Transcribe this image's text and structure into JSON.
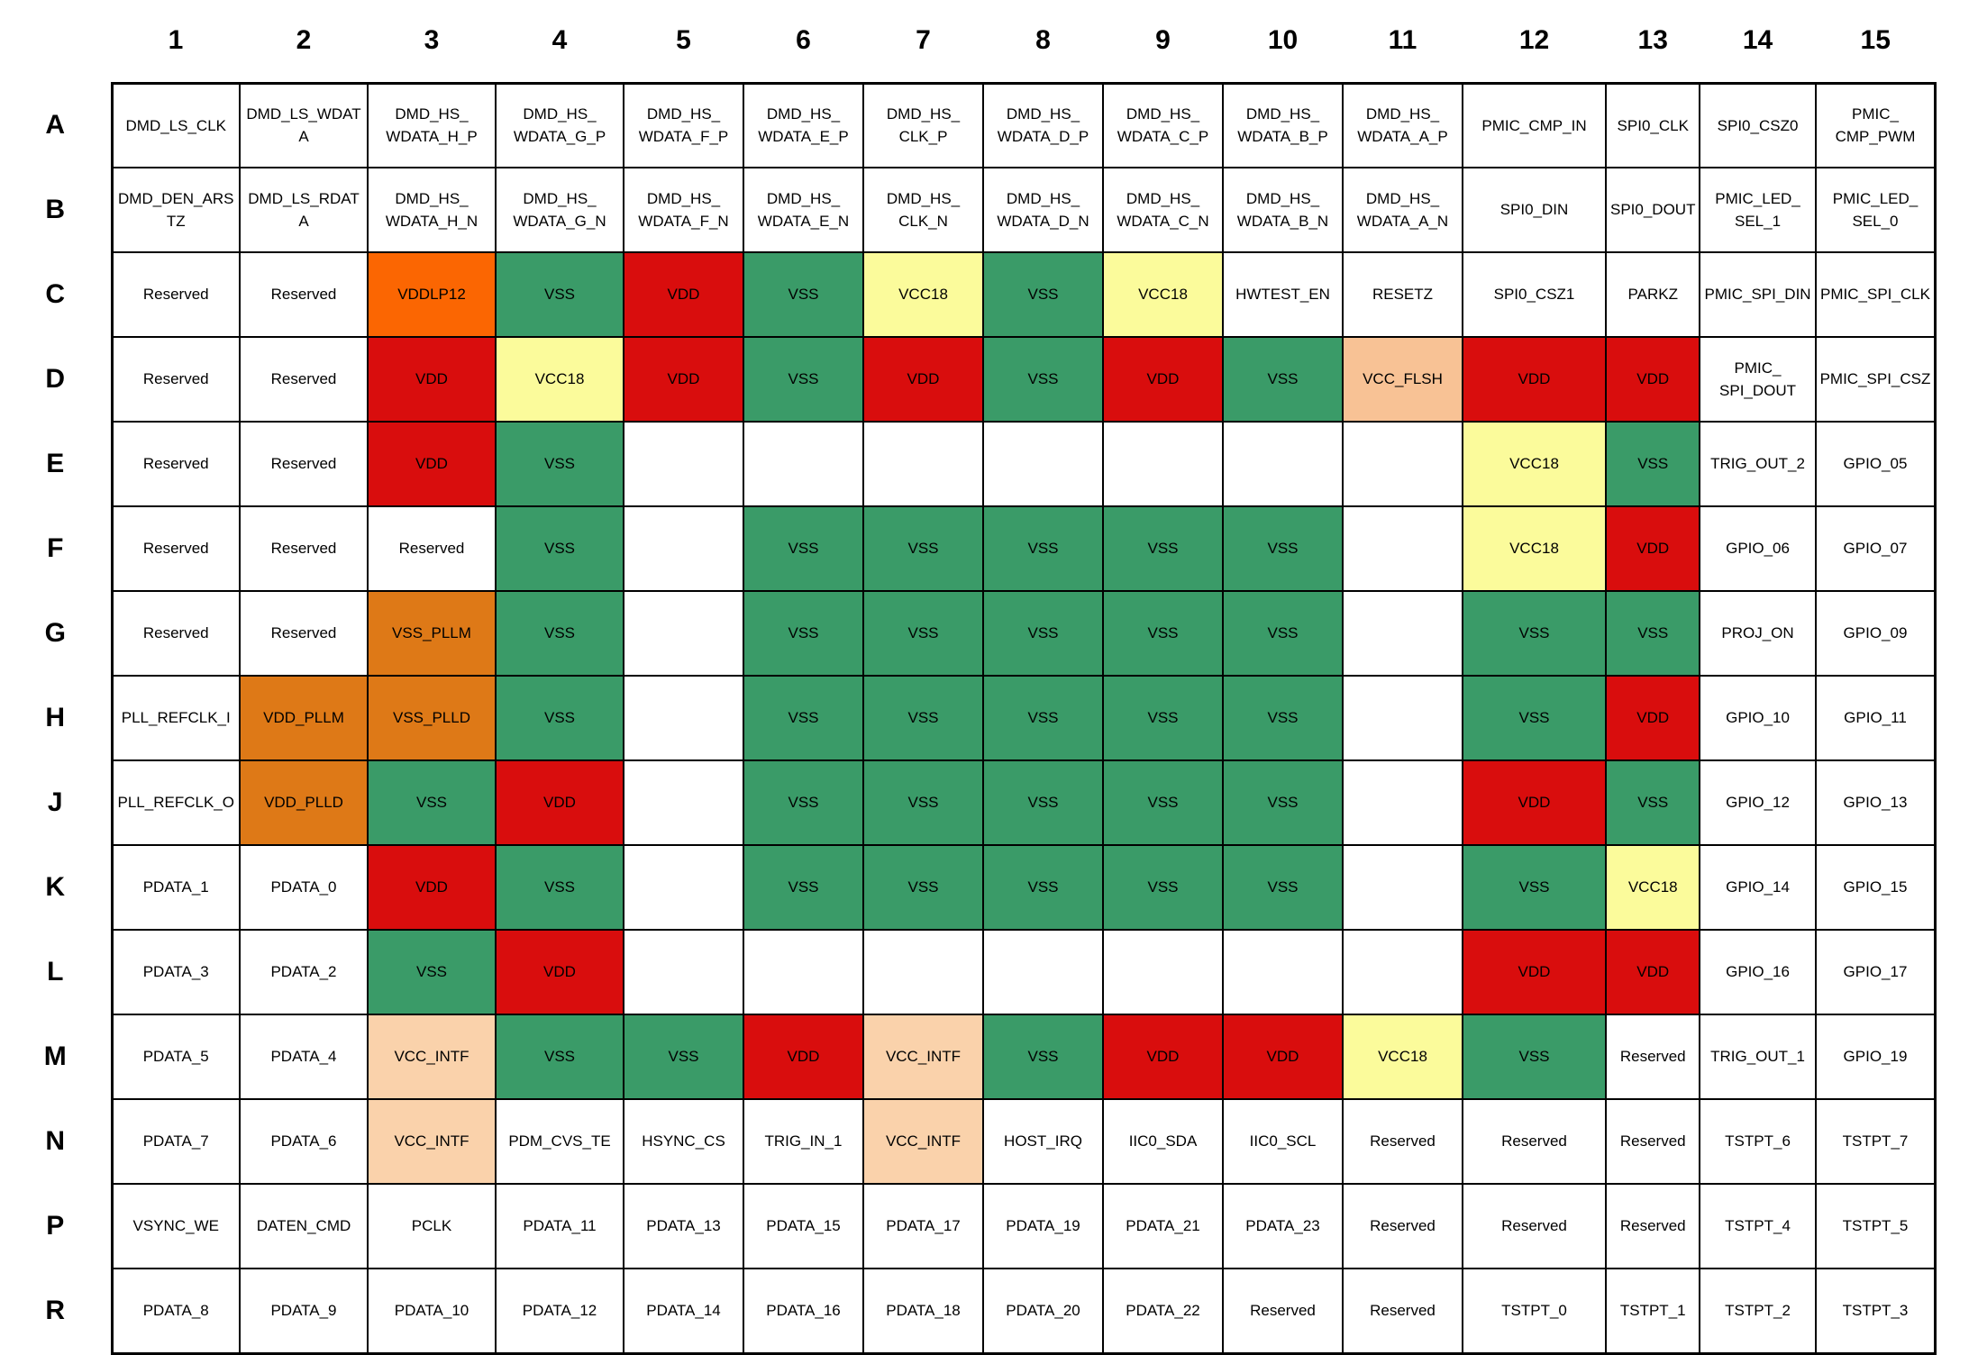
{
  "grid": {
    "column_headers": [
      "1",
      "2",
      "3",
      "4",
      "5",
      "6",
      "7",
      "8",
      "9",
      "10",
      "11",
      "12",
      "13",
      "14",
      "15"
    ],
    "row_headers": [
      "A",
      "B",
      "C",
      "D",
      "E",
      "F",
      "G",
      "H",
      "J",
      "K",
      "L",
      "M",
      "N",
      "P",
      "R"
    ],
    "palette": {
      "w": "#FFFFFF",
      "g": "#3A9B68",
      "r": "#D90D0D",
      "y": "#FBFB9B",
      "o": "#FB6602",
      "d": "#DE7917",
      "p": "#FAD2AB",
      "f": "#F8C295"
    },
    "rows": [
      {
        "label": "A",
        "cells": [
          [
            "DMD_LS_CLK",
            "w"
          ],
          [
            "DMD_LS_WDAT\nA",
            "w"
          ],
          [
            "DMD_HS_\nWDATA_H_P",
            "w"
          ],
          [
            "DMD_HS_\nWDATA_G_P",
            "w"
          ],
          [
            "DMD_HS_\nWDATA_F_P",
            "w"
          ],
          [
            "DMD_HS_\nWDATA_E_P",
            "w"
          ],
          [
            "DMD_HS_\nCLK_P",
            "w"
          ],
          [
            "DMD_HS_\nWDATA_D_P",
            "w"
          ],
          [
            "DMD_HS_\nWDATA_C_P",
            "w"
          ],
          [
            "DMD_HS_\nWDATA_B_P",
            "w"
          ],
          [
            "DMD_HS_\nWDATA_A_P",
            "w"
          ],
          [
            "PMIC_CMP_IN",
            "w"
          ],
          [
            "SPI0_CLK",
            "w"
          ],
          [
            "SPI0_CSZ0",
            "w"
          ],
          [
            "PMIC_\nCMP_PWM",
            "w"
          ]
        ]
      },
      {
        "label": "B",
        "cells": [
          [
            "DMD_DEN_ARS\nTZ",
            "w"
          ],
          [
            "DMD_LS_RDAT\nA",
            "w"
          ],
          [
            "DMD_HS_\nWDATA_H_N",
            "w"
          ],
          [
            "DMD_HS_\nWDATA_G_N",
            "w"
          ],
          [
            "DMD_HS_\nWDATA_F_N",
            "w"
          ],
          [
            "DMD_HS_\nWDATA_E_N",
            "w"
          ],
          [
            "DMD_HS_\nCLK_N",
            "w"
          ],
          [
            "DMD_HS_\nWDATA_D_N",
            "w"
          ],
          [
            "DMD_HS_\nWDATA_C_N",
            "w"
          ],
          [
            "DMD_HS_\nWDATA_B_N",
            "w"
          ],
          [
            "DMD_HS_\nWDATA_A_N",
            "w"
          ],
          [
            "SPI0_DIN",
            "w"
          ],
          [
            "SPI0_DOUT",
            "w"
          ],
          [
            "PMIC_LED_\nSEL_1",
            "w"
          ],
          [
            "PMIC_LED_\nSEL_0",
            "w"
          ]
        ]
      },
      {
        "label": "C",
        "cells": [
          [
            "Reserved",
            "w"
          ],
          [
            "Reserved",
            "w"
          ],
          [
            "VDDLP12",
            "o"
          ],
          [
            "VSS",
            "g"
          ],
          [
            "VDD",
            "r"
          ],
          [
            "VSS",
            "g"
          ],
          [
            "VCC18",
            "y"
          ],
          [
            "VSS",
            "g"
          ],
          [
            "VCC18",
            "y"
          ],
          [
            "HWTEST_EN",
            "w"
          ],
          [
            "RESETZ",
            "w"
          ],
          [
            "SPI0_CSZ1",
            "w"
          ],
          [
            "PARKZ",
            "w"
          ],
          [
            "PMIC_SPI_DIN",
            "w"
          ],
          [
            "PMIC_SPI_CLK",
            "w"
          ]
        ]
      },
      {
        "label": "D",
        "cells": [
          [
            "Reserved",
            "w"
          ],
          [
            "Reserved",
            "w"
          ],
          [
            "VDD",
            "r"
          ],
          [
            "VCC18",
            "y"
          ],
          [
            "VDD",
            "r"
          ],
          [
            "VSS",
            "g"
          ],
          [
            "VDD",
            "r"
          ],
          [
            "VSS",
            "g"
          ],
          [
            "VDD",
            "r"
          ],
          [
            "VSS",
            "g"
          ],
          [
            "VCC_FLSH",
            "f"
          ],
          [
            "VDD",
            "r"
          ],
          [
            "VDD",
            "r"
          ],
          [
            "PMIC_\nSPI_DOUT",
            "w"
          ],
          [
            "PMIC_SPI_CSZ",
            "w"
          ]
        ]
      },
      {
        "label": "E",
        "cells": [
          [
            "Reserved",
            "w"
          ],
          [
            "Reserved",
            "w"
          ],
          [
            "VDD",
            "r"
          ],
          [
            "VSS",
            "g"
          ],
          [
            "",
            "w"
          ],
          [
            "",
            "w"
          ],
          [
            "",
            "w"
          ],
          [
            "",
            "w"
          ],
          [
            "",
            "w"
          ],
          [
            "",
            "w"
          ],
          [
            "",
            "w"
          ],
          [
            "VCC18",
            "y"
          ],
          [
            "VSS",
            "g"
          ],
          [
            "TRIG_OUT_2",
            "w"
          ],
          [
            "GPIO_05",
            "w"
          ]
        ]
      },
      {
        "label": "F",
        "cells": [
          [
            "Reserved",
            "w"
          ],
          [
            "Reserved",
            "w"
          ],
          [
            "Reserved",
            "w"
          ],
          [
            "VSS",
            "g"
          ],
          [
            "",
            "w"
          ],
          [
            "VSS",
            "g"
          ],
          [
            "VSS",
            "g"
          ],
          [
            "VSS",
            "g"
          ],
          [
            "VSS",
            "g"
          ],
          [
            "VSS",
            "g"
          ],
          [
            "",
            "w"
          ],
          [
            "VCC18",
            "y"
          ],
          [
            "VDD",
            "r"
          ],
          [
            "GPIO_06",
            "w"
          ],
          [
            "GPIO_07",
            "w"
          ]
        ]
      },
      {
        "label": "G",
        "cells": [
          [
            "Reserved",
            "w"
          ],
          [
            "Reserved",
            "w"
          ],
          [
            "VSS_PLLM",
            "d"
          ],
          [
            "VSS",
            "g"
          ],
          [
            "",
            "w"
          ],
          [
            "VSS",
            "g"
          ],
          [
            "VSS",
            "g"
          ],
          [
            "VSS",
            "g"
          ],
          [
            "VSS",
            "g"
          ],
          [
            "VSS",
            "g"
          ],
          [
            "",
            "w"
          ],
          [
            "VSS",
            "g"
          ],
          [
            "VSS",
            "g"
          ],
          [
            "PROJ_ON",
            "w"
          ],
          [
            "GPIO_09",
            "w"
          ]
        ]
      },
      {
        "label": "H",
        "cells": [
          [
            "PLL_REFCLK_I",
            "w"
          ],
          [
            "VDD_PLLM",
            "d"
          ],
          [
            "VSS_PLLD",
            "d"
          ],
          [
            "VSS",
            "g"
          ],
          [
            "",
            "w"
          ],
          [
            "VSS",
            "g"
          ],
          [
            "VSS",
            "g"
          ],
          [
            "VSS",
            "g"
          ],
          [
            "VSS",
            "g"
          ],
          [
            "VSS",
            "g"
          ],
          [
            "",
            "w"
          ],
          [
            "VSS",
            "g"
          ],
          [
            "VDD",
            "r"
          ],
          [
            "GPIO_10",
            "w"
          ],
          [
            "GPIO_11",
            "w"
          ]
        ]
      },
      {
        "label": "J",
        "cells": [
          [
            "PLL_REFCLK_O",
            "w"
          ],
          [
            "VDD_PLLD",
            "d"
          ],
          [
            "VSS",
            "g"
          ],
          [
            "VDD",
            "r"
          ],
          [
            "",
            "w"
          ],
          [
            "VSS",
            "g"
          ],
          [
            "VSS",
            "g"
          ],
          [
            "VSS",
            "g"
          ],
          [
            "VSS",
            "g"
          ],
          [
            "VSS",
            "g"
          ],
          [
            "",
            "w"
          ],
          [
            "VDD",
            "r"
          ],
          [
            "VSS",
            "g"
          ],
          [
            "GPIO_12",
            "w"
          ],
          [
            "GPIO_13",
            "w"
          ]
        ]
      },
      {
        "label": "K",
        "cells": [
          [
            "PDATA_1",
            "w"
          ],
          [
            "PDATA_0",
            "w"
          ],
          [
            "VDD",
            "r"
          ],
          [
            "VSS",
            "g"
          ],
          [
            "",
            "w"
          ],
          [
            "VSS",
            "g"
          ],
          [
            "VSS",
            "g"
          ],
          [
            "VSS",
            "g"
          ],
          [
            "VSS",
            "g"
          ],
          [
            "VSS",
            "g"
          ],
          [
            "",
            "w"
          ],
          [
            "VSS",
            "g"
          ],
          [
            "VCC18",
            "y"
          ],
          [
            "GPIO_14",
            "w"
          ],
          [
            "GPIO_15",
            "w"
          ]
        ]
      },
      {
        "label": "L",
        "cells": [
          [
            "PDATA_3",
            "w"
          ],
          [
            "PDATA_2",
            "w"
          ],
          [
            "VSS",
            "g"
          ],
          [
            "VDD",
            "r"
          ],
          [
            "",
            "w"
          ],
          [
            "",
            "w"
          ],
          [
            "",
            "w"
          ],
          [
            "",
            "w"
          ],
          [
            "",
            "w"
          ],
          [
            "",
            "w"
          ],
          [
            "",
            "w"
          ],
          [
            "VDD",
            "r"
          ],
          [
            "VDD",
            "r"
          ],
          [
            "GPIO_16",
            "w"
          ],
          [
            "GPIO_17",
            "w"
          ]
        ]
      },
      {
        "label": "M",
        "cells": [
          [
            "PDATA_5",
            "w"
          ],
          [
            "PDATA_4",
            "w"
          ],
          [
            "VCC_INTF",
            "p"
          ],
          [
            "VSS",
            "g"
          ],
          [
            "VSS",
            "g"
          ],
          [
            "VDD",
            "r"
          ],
          [
            "VCC_INTF",
            "p"
          ],
          [
            "VSS",
            "g"
          ],
          [
            "VDD",
            "r"
          ],
          [
            "VDD",
            "r"
          ],
          [
            "VCC18",
            "y"
          ],
          [
            "VSS",
            "g"
          ],
          [
            "Reserved",
            "w"
          ],
          [
            "TRIG_OUT_1",
            "w"
          ],
          [
            "GPIO_19",
            "w"
          ]
        ]
      },
      {
        "label": "N",
        "cells": [
          [
            "PDATA_7",
            "w"
          ],
          [
            "PDATA_6",
            "w"
          ],
          [
            "VCC_INTF",
            "p"
          ],
          [
            "PDM_CVS_TE",
            "w"
          ],
          [
            "HSYNC_CS",
            "w"
          ],
          [
            "TRIG_IN_1",
            "w"
          ],
          [
            "VCC_INTF",
            "p"
          ],
          [
            "HOST_IRQ",
            "w"
          ],
          [
            "IIC0_SDA",
            "w"
          ],
          [
            "IIC0_SCL",
            "w"
          ],
          [
            "Reserved",
            "w"
          ],
          [
            "Reserved",
            "w"
          ],
          [
            "Reserved",
            "w"
          ],
          [
            "TSTPT_6",
            "w"
          ],
          [
            "TSTPT_7",
            "w"
          ]
        ]
      },
      {
        "label": "P",
        "cells": [
          [
            "VSYNC_WE",
            "w"
          ],
          [
            "DATEN_CMD",
            "w"
          ],
          [
            "PCLK",
            "w"
          ],
          [
            "PDATA_11",
            "w"
          ],
          [
            "PDATA_13",
            "w"
          ],
          [
            "PDATA_15",
            "w"
          ],
          [
            "PDATA_17",
            "w"
          ],
          [
            "PDATA_19",
            "w"
          ],
          [
            "PDATA_21",
            "w"
          ],
          [
            "PDATA_23",
            "w"
          ],
          [
            "Reserved",
            "w"
          ],
          [
            "Reserved",
            "w"
          ],
          [
            "Reserved",
            "w"
          ],
          [
            "TSTPT_4",
            "w"
          ],
          [
            "TSTPT_5",
            "w"
          ]
        ]
      },
      {
        "label": "R",
        "cells": [
          [
            "PDATA_8",
            "w"
          ],
          [
            "PDATA_9",
            "w"
          ],
          [
            "PDATA_10",
            "w"
          ],
          [
            "PDATA_12",
            "w"
          ],
          [
            "PDATA_14",
            "w"
          ],
          [
            "PDATA_16",
            "w"
          ],
          [
            "PDATA_18",
            "w"
          ],
          [
            "PDATA_20",
            "w"
          ],
          [
            "PDATA_22",
            "w"
          ],
          [
            "Reserved",
            "w"
          ],
          [
            "Reserved",
            "w"
          ],
          [
            "TSTPT_0",
            "w"
          ],
          [
            "TSTPT_1",
            "w"
          ],
          [
            "TSTPT_2",
            "w"
          ],
          [
            "TSTPT_3",
            "w"
          ]
        ]
      }
    ]
  }
}
